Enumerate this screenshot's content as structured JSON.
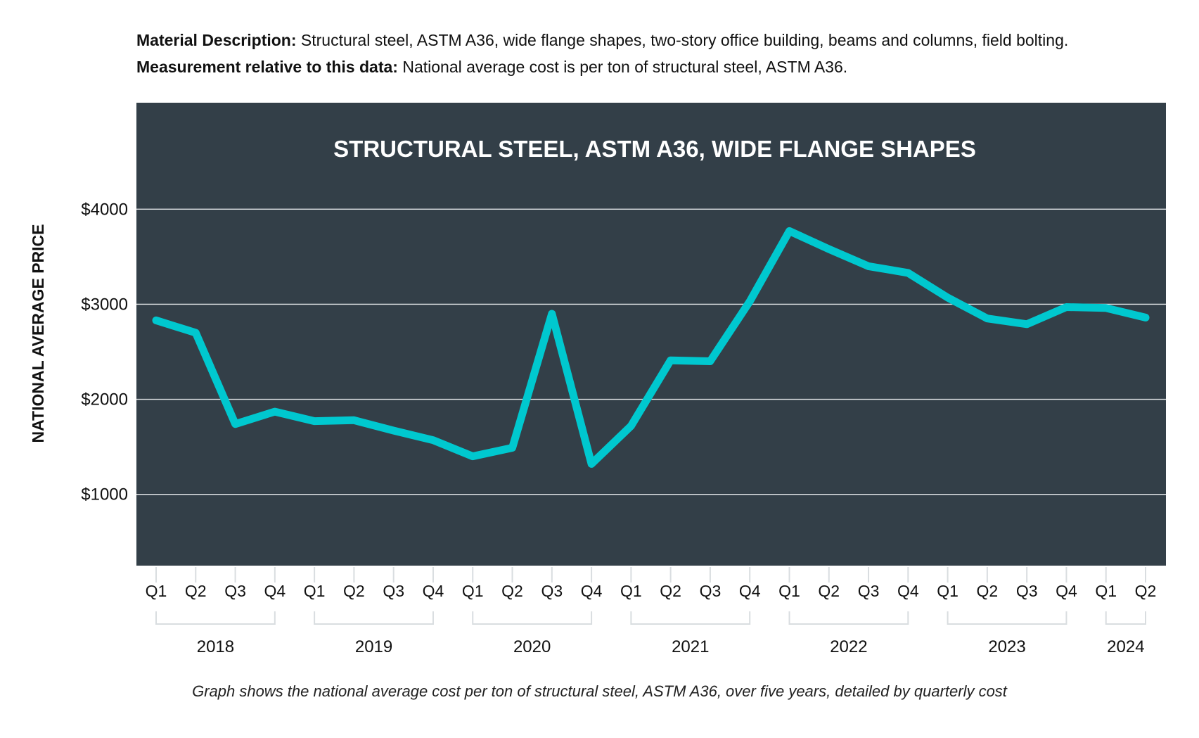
{
  "header": {
    "material_label": "Material Description:",
    "material_text": "Structural steel, ASTM A36, wide flange shapes, two-story office building, beams and columns, field bolting.",
    "measurement_label": "Measurement relative to this data:",
    "measurement_text": "National average cost is per ton of structural steel, ASTM A36."
  },
  "caption": "Graph shows the national average cost per ton of structural steel, ASTM A36, over five years, detailed by quarterly cost",
  "colors": {
    "panel_background": "#333f48",
    "line": "#00c8cf",
    "gridline": "#e6e9eb",
    "title_text": "#ffffff",
    "axis_text": "#111111",
    "tick_marks": "#d9dde0"
  },
  "chart_data": {
    "type": "line",
    "title": "STRUCTURAL STEEL, ASTM A36, WIDE FLANGE SHAPES",
    "ylabel": "NATIONAL AVERAGE PRICE",
    "xlabel": "",
    "ylim": [
      250,
      5120
    ],
    "yticks": [
      1000,
      2000,
      3000,
      4000
    ],
    "ytick_labels": [
      "$1000",
      "$2000",
      "$3000",
      "$4000"
    ],
    "grid": true,
    "x": [
      "2018 Q1",
      "2018 Q2",
      "2018 Q3",
      "2018 Q4",
      "2019 Q1",
      "2019 Q2",
      "2019 Q3",
      "2019 Q4",
      "2020 Q1",
      "2020 Q2",
      "2020 Q3",
      "2020 Q4",
      "2021 Q1",
      "2021 Q2",
      "2021 Q3",
      "2021 Q4",
      "2022 Q1",
      "2022 Q2",
      "2022 Q3",
      "2022 Q4",
      "2023 Q1",
      "2023 Q2",
      "2023 Q3",
      "2023 Q4",
      "2024 Q1",
      "2024 Q2"
    ],
    "quarter_labels": [
      "Q1",
      "Q2",
      "Q3",
      "Q4",
      "Q1",
      "Q2",
      "Q3",
      "Q4",
      "Q1",
      "Q2",
      "Q3",
      "Q4",
      "Q1",
      "Q2",
      "Q3",
      "Q4",
      "Q1",
      "Q2",
      "Q3",
      "Q4",
      "Q1",
      "Q2",
      "Q3",
      "Q4",
      "Q1",
      "Q2"
    ],
    "years": [
      "2018",
      "2019",
      "2020",
      "2021",
      "2022",
      "2023",
      "2024"
    ],
    "values": [
      2830,
      2700,
      1740,
      1870,
      1770,
      1780,
      1670,
      1570,
      1400,
      1490,
      2900,
      1320,
      1720,
      2410,
      2400,
      3030,
      3770,
      3580,
      3400,
      3330,
      3070,
      2850,
      2790,
      2970,
      2960,
      2860
    ]
  }
}
